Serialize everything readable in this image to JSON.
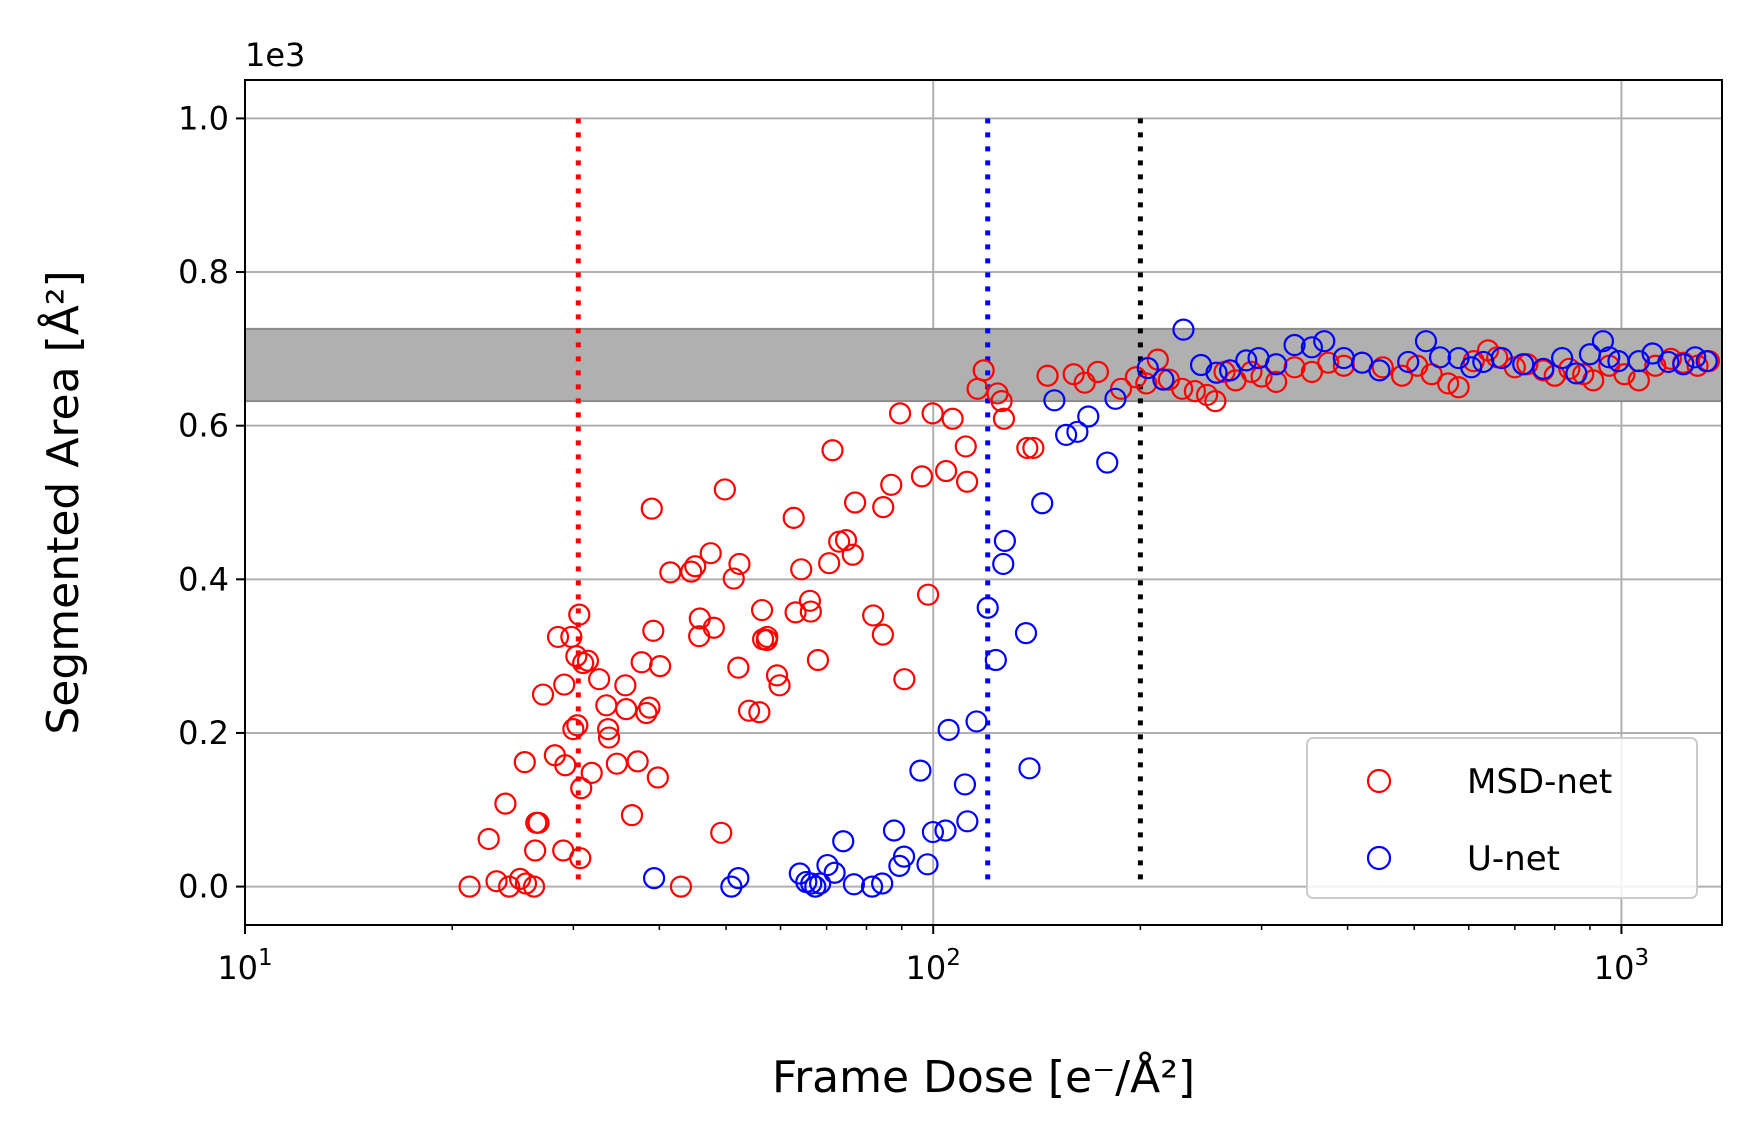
{
  "chart_data": {
    "type": "scatter",
    "title": "",
    "xlabel": "Frame Dose [e⁻/Å²]",
    "ylabel": "Segmented Area [Å²]",
    "x_scale": "log",
    "xlim": [
      10,
      1400
    ],
    "ylim": [
      -0.05,
      1.05
    ],
    "y_offset_label": "1e3",
    "x_ticks": [
      {
        "value": 10,
        "base": "10",
        "exp": "1"
      },
      {
        "value": 100,
        "base": "10",
        "exp": "2"
      },
      {
        "value": 1000,
        "base": "10",
        "exp": "3"
      }
    ],
    "y_ticks": [
      "0.0",
      "0.2",
      "0.4",
      "0.6",
      "0.8",
      "1.0"
    ],
    "grid": true,
    "legend_position": "lower right",
    "band": {
      "y_min": 0.632,
      "y_max": 0.726,
      "color": "#b0b0b0"
    },
    "vlines": [
      {
        "x": 30.5,
        "color": "#ff0000",
        "style": "dotted"
      },
      {
        "x": 120,
        "color": "#0000ff",
        "style": "dotted"
      },
      {
        "x": 200,
        "color": "#000000",
        "style": "dotted"
      }
    ],
    "series": [
      {
        "name": "MSD-net",
        "color": "#ff0000",
        "marker": "open-circle",
        "points": [
          [
            21.2,
            0.0
          ],
          [
            22.6,
            0.062
          ],
          [
            23.2,
            0.007
          ],
          [
            23.9,
            0.108
          ],
          [
            24.2,
            0.0
          ],
          [
            25.1,
            0.01
          ],
          [
            25.5,
            0.162
          ],
          [
            25.6,
            0.004
          ],
          [
            26.3,
            0.0
          ],
          [
            26.4,
            0.047
          ],
          [
            26.5,
            0.083
          ],
          [
            26.7,
            0.083
          ],
          [
            27.1,
            0.25
          ],
          [
            28.2,
            0.171
          ],
          [
            28.5,
            0.325
          ],
          [
            29.0,
            0.047
          ],
          [
            29.1,
            0.263
          ],
          [
            29.2,
            0.158
          ],
          [
            29.8,
            0.325
          ],
          [
            30.0,
            0.205
          ],
          [
            30.3,
            0.3
          ],
          [
            30.4,
            0.21
          ],
          [
            30.6,
            0.354
          ],
          [
            30.7,
            0.037
          ],
          [
            30.8,
            0.128
          ],
          [
            31.0,
            0.291
          ],
          [
            31.5,
            0.294
          ],
          [
            31.9,
            0.148
          ],
          [
            32.7,
            0.27
          ],
          [
            33.5,
            0.236
          ],
          [
            33.7,
            0.205
          ],
          [
            33.8,
            0.194
          ],
          [
            34.7,
            0.16
          ],
          [
            35.7,
            0.262
          ],
          [
            35.8,
            0.231
          ],
          [
            36.5,
            0.093
          ],
          [
            37.2,
            0.163
          ],
          [
            37.7,
            0.292
          ],
          [
            38.3,
            0.226
          ],
          [
            38.7,
            0.233
          ],
          [
            39.0,
            0.492
          ],
          [
            39.2,
            0.333
          ],
          [
            39.8,
            0.142
          ],
          [
            40.1,
            0.287
          ],
          [
            41.5,
            0.409
          ],
          [
            43.0,
            0.0
          ],
          [
            44.5,
            0.41
          ],
          [
            45.1,
            0.417
          ],
          [
            45.7,
            0.326
          ],
          [
            45.8,
            0.349
          ],
          [
            47.5,
            0.434
          ],
          [
            48.0,
            0.337
          ],
          [
            49.2,
            0.07
          ],
          [
            49.8,
            0.517
          ],
          [
            51.3,
            0.401
          ],
          [
            52.1,
            0.285
          ],
          [
            52.3,
            0.42
          ],
          [
            54.0,
            0.229
          ],
          [
            55.9,
            0.227
          ],
          [
            56.4,
            0.36
          ],
          [
            56.6,
            0.322
          ],
          [
            57.3,
            0.321
          ],
          [
            57.4,
            0.325
          ],
          [
            59.3,
            0.275
          ],
          [
            59.8,
            0.262
          ],
          [
            62.7,
            0.48
          ],
          [
            63.1,
            0.357
          ],
          [
            64.3,
            0.413
          ],
          [
            66.2,
            0.372
          ],
          [
            66.4,
            0.358
          ],
          [
            68.0,
            0.295
          ],
          [
            70.6,
            0.421
          ],
          [
            71.4,
            0.568
          ],
          [
            73.0,
            0.449
          ],
          [
            74.7,
            0.451
          ],
          [
            76.4,
            0.432
          ],
          [
            77.0,
            0.5
          ],
          [
            81.8,
            0.353
          ],
          [
            84.5,
            0.328
          ],
          [
            84.6,
            0.494
          ],
          [
            86.9,
            0.523
          ],
          [
            89.5,
            0.616
          ],
          [
            90.8,
            0.27
          ],
          [
            96.3,
            0.534
          ],
          [
            98.3,
            0.38
          ],
          [
            99.8,
            0.616
          ],
          [
            104.4,
            0.541
          ],
          [
            106.7,
            0.609
          ],
          [
            111.5,
            0.573
          ],
          [
            112.0,
            0.527
          ],
          [
            116.0,
            0.648
          ],
          [
            118.4,
            0.672
          ],
          [
            124.0,
            0.642
          ],
          [
            125.7,
            0.632
          ],
          [
            126.7,
            0.609
          ],
          [
            137.0,
            0.571
          ],
          [
            139.8,
            0.571
          ],
          [
            146.6,
            0.665
          ],
          [
            160.0,
            0.667
          ],
          [
            166.0,
            0.656
          ],
          [
            173.5,
            0.67
          ],
          [
            187.5,
            0.648
          ],
          [
            197.0,
            0.663
          ],
          [
            204.0,
            0.655
          ],
          [
            212.0,
            0.686
          ],
          [
            220.0,
            0.66
          ],
          [
            230.0,
            0.648
          ],
          [
            240.0,
            0.645
          ],
          [
            250.0,
            0.64
          ],
          [
            257.0,
            0.632
          ],
          [
            265.0,
            0.67
          ],
          [
            275.0,
            0.659
          ],
          [
            290.0,
            0.67
          ],
          [
            300.0,
            0.664
          ],
          [
            315.0,
            0.657
          ],
          [
            335.0,
            0.676
          ],
          [
            355.0,
            0.67
          ],
          [
            375.0,
            0.682
          ],
          [
            395.0,
            0.678
          ],
          [
            420.0,
            0.682
          ],
          [
            450.0,
            0.676
          ],
          [
            480.0,
            0.665
          ],
          [
            505.0,
            0.678
          ],
          [
            530.0,
            0.667
          ],
          [
            560.0,
            0.655
          ],
          [
            580.0,
            0.65
          ],
          [
            610.0,
            0.684
          ],
          [
            640.0,
            0.698
          ],
          [
            660.0,
            0.689
          ],
          [
            700.0,
            0.676
          ],
          [
            730.0,
            0.68
          ],
          [
            770.0,
            0.672
          ],
          [
            800.0,
            0.665
          ],
          [
            840.0,
            0.674
          ],
          [
            880.0,
            0.667
          ],
          [
            910.0,
            0.659
          ],
          [
            960.0,
            0.678
          ],
          [
            1010.0,
            0.667
          ],
          [
            1060.0,
            0.659
          ],
          [
            1120.0,
            0.678
          ],
          [
            1180.0,
            0.687
          ],
          [
            1230.0,
            0.682
          ],
          [
            1290.0,
            0.678
          ],
          [
            1340.0,
            0.684
          ]
        ]
      },
      {
        "name": "U-net",
        "color": "#0000ff",
        "marker": "open-circle",
        "points": [
          [
            39.3,
            0.011
          ],
          [
            50.9,
            0.0
          ],
          [
            52.1,
            0.011
          ],
          [
            64.0,
            0.017
          ],
          [
            65.4,
            0.006
          ],
          [
            66.5,
            0.004
          ],
          [
            67.4,
            0.0
          ],
          [
            68.5,
            0.004
          ],
          [
            70.2,
            0.028
          ],
          [
            71.9,
            0.018
          ],
          [
            74.0,
            0.059
          ],
          [
            76.7,
            0.003
          ],
          [
            81.5,
            0.0
          ],
          [
            84.3,
            0.004
          ],
          [
            87.7,
            0.073
          ],
          [
            89.3,
            0.027
          ],
          [
            90.7,
            0.039
          ],
          [
            95.8,
            0.151
          ],
          [
            98.1,
            0.029
          ],
          [
            99.9,
            0.071
          ],
          [
            104.2,
            0.073
          ],
          [
            105.3,
            0.204
          ],
          [
            111.2,
            0.133
          ],
          [
            112.1,
            0.085
          ],
          [
            115.6,
            0.215
          ],
          [
            120.0,
            0.363
          ],
          [
            123.3,
            0.295
          ],
          [
            126.4,
            0.42
          ],
          [
            127.1,
            0.45
          ],
          [
            136.4,
            0.33
          ],
          [
            138.0,
            0.154
          ],
          [
            144.0,
            0.499
          ],
          [
            150.0,
            0.633
          ],
          [
            156.0,
            0.588
          ],
          [
            162.0,
            0.592
          ],
          [
            168.0,
            0.612
          ],
          [
            179.0,
            0.552
          ],
          [
            184.0,
            0.635
          ],
          [
            205.0,
            0.675
          ],
          [
            216.0,
            0.66
          ],
          [
            231.0,
            0.725
          ],
          [
            245.0,
            0.679
          ],
          [
            258.0,
            0.669
          ],
          [
            270.0,
            0.672
          ],
          [
            285.0,
            0.685
          ],
          [
            297.0,
            0.688
          ],
          [
            315.0,
            0.68
          ],
          [
            335.0,
            0.705
          ],
          [
            355.0,
            0.702
          ],
          [
            370.0,
            0.71
          ],
          [
            395.0,
            0.688
          ],
          [
            420.0,
            0.682
          ],
          [
            445.0,
            0.672
          ],
          [
            490.0,
            0.683
          ],
          [
            520.0,
            0.71
          ],
          [
            545.0,
            0.689
          ],
          [
            580.0,
            0.688
          ],
          [
            605.0,
            0.676
          ],
          [
            630.0,
            0.683
          ],
          [
            670.0,
            0.688
          ],
          [
            720.0,
            0.68
          ],
          [
            770.0,
            0.674
          ],
          [
            820.0,
            0.688
          ],
          [
            860.0,
            0.668
          ],
          [
            900.0,
            0.693
          ],
          [
            940.0,
            0.71
          ],
          [
            960.0,
            0.689
          ],
          [
            990.0,
            0.684
          ],
          [
            1060.0,
            0.684
          ],
          [
            1110.0,
            0.694
          ],
          [
            1170.0,
            0.683
          ],
          [
            1230.0,
            0.68
          ],
          [
            1280.0,
            0.689
          ],
          [
            1330.0,
            0.684
          ]
        ]
      }
    ]
  }
}
